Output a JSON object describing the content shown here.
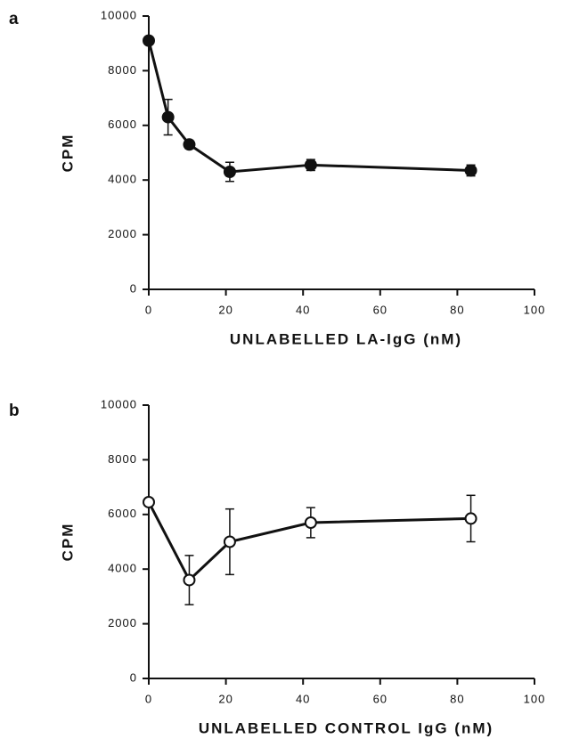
{
  "chart_data": [
    {
      "type": "line",
      "panel_label": "a",
      "xlabel": "UNLABELLED  LA-IgG  (nM)",
      "ylabel": "CPM",
      "x": [
        0,
        5,
        10.5,
        21,
        42,
        83.5
      ],
      "series": [
        {
          "color": "#111111",
          "marker": "filled",
          "values": [
            9100,
            6300,
            5300,
            4300,
            4550,
            4350
          ],
          "errors": [
            null,
            650,
            150,
            350,
            200,
            200
          ]
        }
      ],
      "xlim": [
        0,
        100
      ],
      "ylim": [
        0,
        10000
      ],
      "xticks": [
        0,
        20,
        40,
        60,
        80,
        100
      ],
      "yticks": [
        0,
        2000,
        4000,
        6000,
        8000,
        10000
      ]
    },
    {
      "type": "line",
      "panel_label": "b",
      "xlabel": "UNLABELLED  CONTROL  IgG  (nM)",
      "ylabel": "CPM",
      "x": [
        0,
        10.5,
        21,
        42,
        83.5
      ],
      "series": [
        {
          "color": "#111111",
          "marker": "open",
          "values": [
            6450,
            3600,
            5000,
            5700,
            5850
          ],
          "errors": [
            null,
            900,
            1200,
            550,
            850
          ]
        }
      ],
      "xlim": [
        0,
        100
      ],
      "ylim": [
        0,
        10000
      ],
      "xticks": [
        0,
        20,
        40,
        60,
        80,
        100
      ],
      "yticks": [
        0,
        2000,
        4000,
        6000,
        8000,
        10000
      ]
    }
  ]
}
